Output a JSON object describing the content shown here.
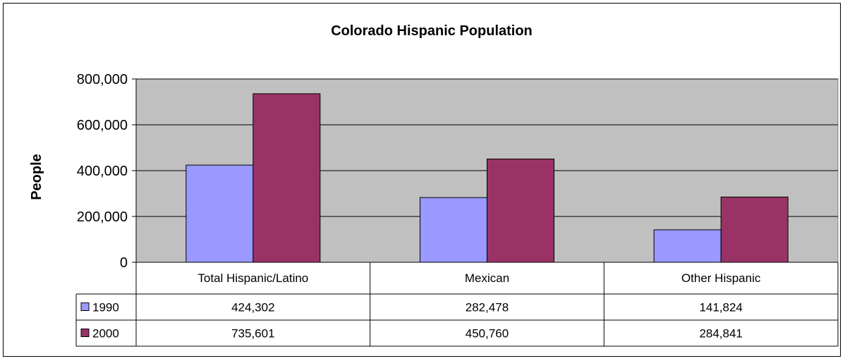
{
  "chart_data": {
    "type": "bar",
    "title": "Colorado Hispanic Population",
    "xlabel": "",
    "ylabel": "People",
    "categories": [
      "Total Hispanic/Latino",
      "Mexican",
      "Other Hispanic"
    ],
    "series": [
      {
        "name": "1990",
        "values": [
          424302,
          282478,
          141824
        ],
        "color": "#9999ff"
      },
      {
        "name": "2000",
        "values": [
          735601,
          450760,
          284841
        ],
        "color": "#993366"
      }
    ],
    "data_table": {
      "rows": [
        {
          "series": "1990",
          "cells": [
            "424,302",
            "282,478",
            "141,824"
          ]
        },
        {
          "series": "2000",
          "cells": [
            "735,601",
            "450,760",
            "284,841"
          ]
        }
      ]
    },
    "yticks": [
      "0",
      "200,000",
      "400,000",
      "600,000",
      "800,000"
    ],
    "ylim": [
      0,
      800000
    ],
    "grid": true,
    "legend": "data table",
    "plot_background": "#c0c0c0"
  }
}
